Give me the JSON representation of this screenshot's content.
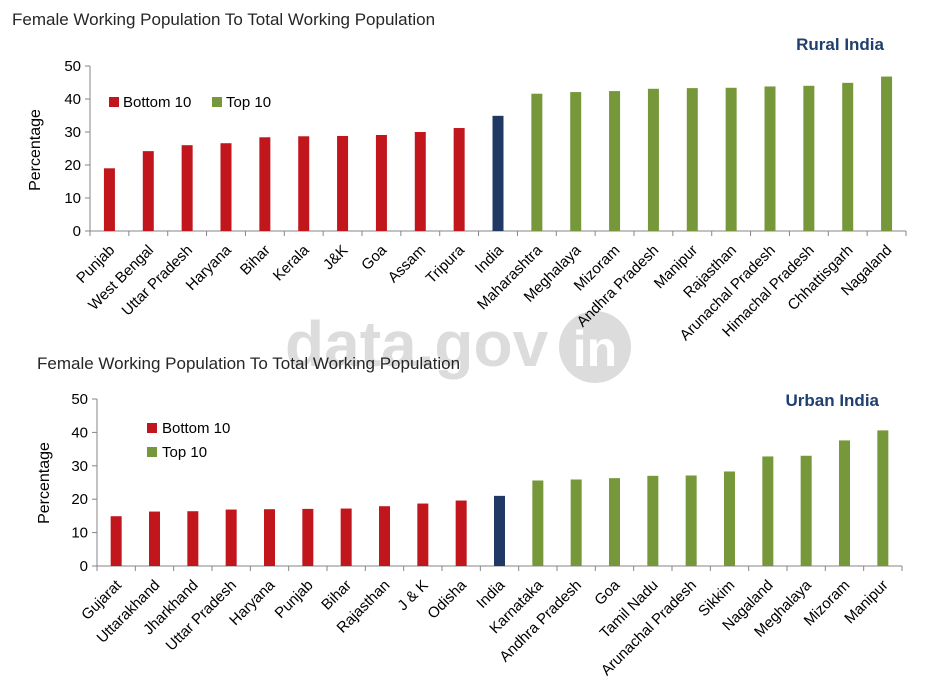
{
  "watermark": {
    "text": "data.gov",
    "suffix": "in"
  },
  "legend": {
    "bottom": "Bottom 10",
    "top": "Top 10"
  },
  "colors": {
    "bottom": "#c0161c",
    "top": "#77973b",
    "india": "#1f3864"
  },
  "chart_data": [
    {
      "type": "bar",
      "title": "Female Working Population To Total Working Population",
      "region": "Rural India",
      "ylabel": "Percentage",
      "ylim": [
        0,
        50
      ],
      "yticks": [
        0,
        10,
        20,
        30,
        40,
        50
      ],
      "legend_position": "top-left",
      "grid": false,
      "categories": [
        "Punjab",
        "West Bengal",
        "Uttar Pradesh",
        "Haryana",
        "Bihar",
        "Kerala",
        "J&K",
        "Goa",
        "Assam",
        "Tripura",
        "India",
        "Maharashtra",
        "Meghalaya",
        "Mizoram",
        "Andhra Pradesh",
        "Manipur",
        "Rajasthan",
        "Arunachal Pradesh",
        "Himachal Pradesh",
        "Chhattisgarh",
        "Nagaland"
      ],
      "values": [
        19.0,
        24.2,
        26.0,
        26.6,
        28.4,
        28.7,
        28.8,
        29.1,
        30.0,
        31.2,
        34.9,
        41.6,
        42.1,
        42.4,
        43.1,
        43.3,
        43.4,
        43.8,
        44.0,
        44.9,
        46.8
      ],
      "groups": [
        "bottom",
        "bottom",
        "bottom",
        "bottom",
        "bottom",
        "bottom",
        "bottom",
        "bottom",
        "bottom",
        "bottom",
        "india",
        "top",
        "top",
        "top",
        "top",
        "top",
        "top",
        "top",
        "top",
        "top",
        "top"
      ]
    },
    {
      "type": "bar",
      "title": "Female Working Population To Total Working Population",
      "region": "Urban India",
      "ylabel": "Percentage",
      "ylim": [
        0,
        50
      ],
      "yticks": [
        0,
        10,
        20,
        30,
        40,
        50
      ],
      "legend_position": "top-left",
      "grid": false,
      "categories": [
        "Gujarat",
        "Uttarakhand",
        "Jharkhand",
        "Uttar Pradesh",
        "Haryana",
        "Punjab",
        "Bihar",
        "Rajasthan",
        "J & K",
        "Odisha",
        "India",
        "Karnataka",
        "Andhra Pradesh",
        "Goa",
        "Tamil Nadu",
        "Arunachal Pradesh",
        "Sikkim",
        "Nagaland",
        "Meghalaya",
        "Mizoram",
        "Manipur"
      ],
      "values": [
        14.9,
        16.3,
        16.4,
        16.9,
        17.0,
        17.1,
        17.2,
        17.9,
        18.7,
        19.6,
        21.0,
        25.6,
        25.9,
        26.3,
        27.0,
        27.1,
        28.3,
        32.8,
        33.0,
        37.6,
        40.6
      ],
      "groups": [
        "bottom",
        "bottom",
        "bottom",
        "bottom",
        "bottom",
        "bottom",
        "bottom",
        "bottom",
        "bottom",
        "bottom",
        "india",
        "top",
        "top",
        "top",
        "top",
        "top",
        "top",
        "top",
        "top",
        "top",
        "top"
      ]
    }
  ]
}
